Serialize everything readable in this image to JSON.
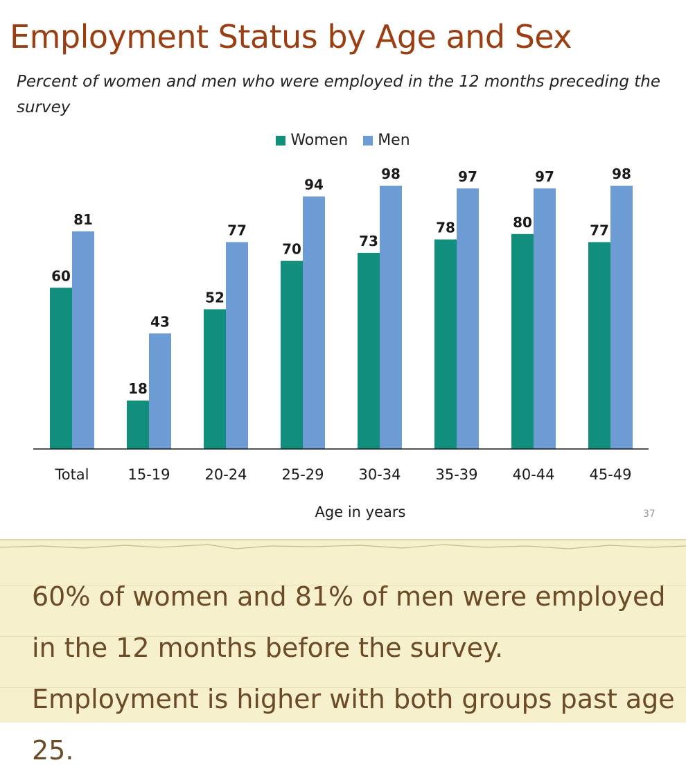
{
  "slide": {
    "title": "Employment Status by Age and Sex",
    "subtitle": "Percent of women and men who were employed in the 12 months preceding the survey",
    "page_number": "37"
  },
  "colors": {
    "women": "#128f7c",
    "men": "#6d9bd3",
    "title": "#9b3f12",
    "caption_text": "#6b4a26",
    "caption_background": "#f7f0cc"
  },
  "chart_data": {
    "type": "bar",
    "categories": [
      "Total",
      "15-19",
      "20-24",
      "25-29",
      "30-34",
      "35-39",
      "40-44",
      "45-49"
    ],
    "series": [
      {
        "name": "Women",
        "values": [
          60,
          18,
          52,
          70,
          73,
          78,
          80,
          77
        ]
      },
      {
        "name": "Men",
        "values": [
          81,
          43,
          77,
          94,
          98,
          97,
          97,
          98
        ]
      }
    ],
    "xlabel": "Age in years",
    "ylabel": "",
    "ylim": [
      0,
      100
    ],
    "grid": false,
    "legend_position": "top-center",
    "data_labels": true
  },
  "caption": {
    "text": "60% of women and 81% of men were employed in the 12 months before the survey. Employment is higher with both groups past age 25."
  }
}
